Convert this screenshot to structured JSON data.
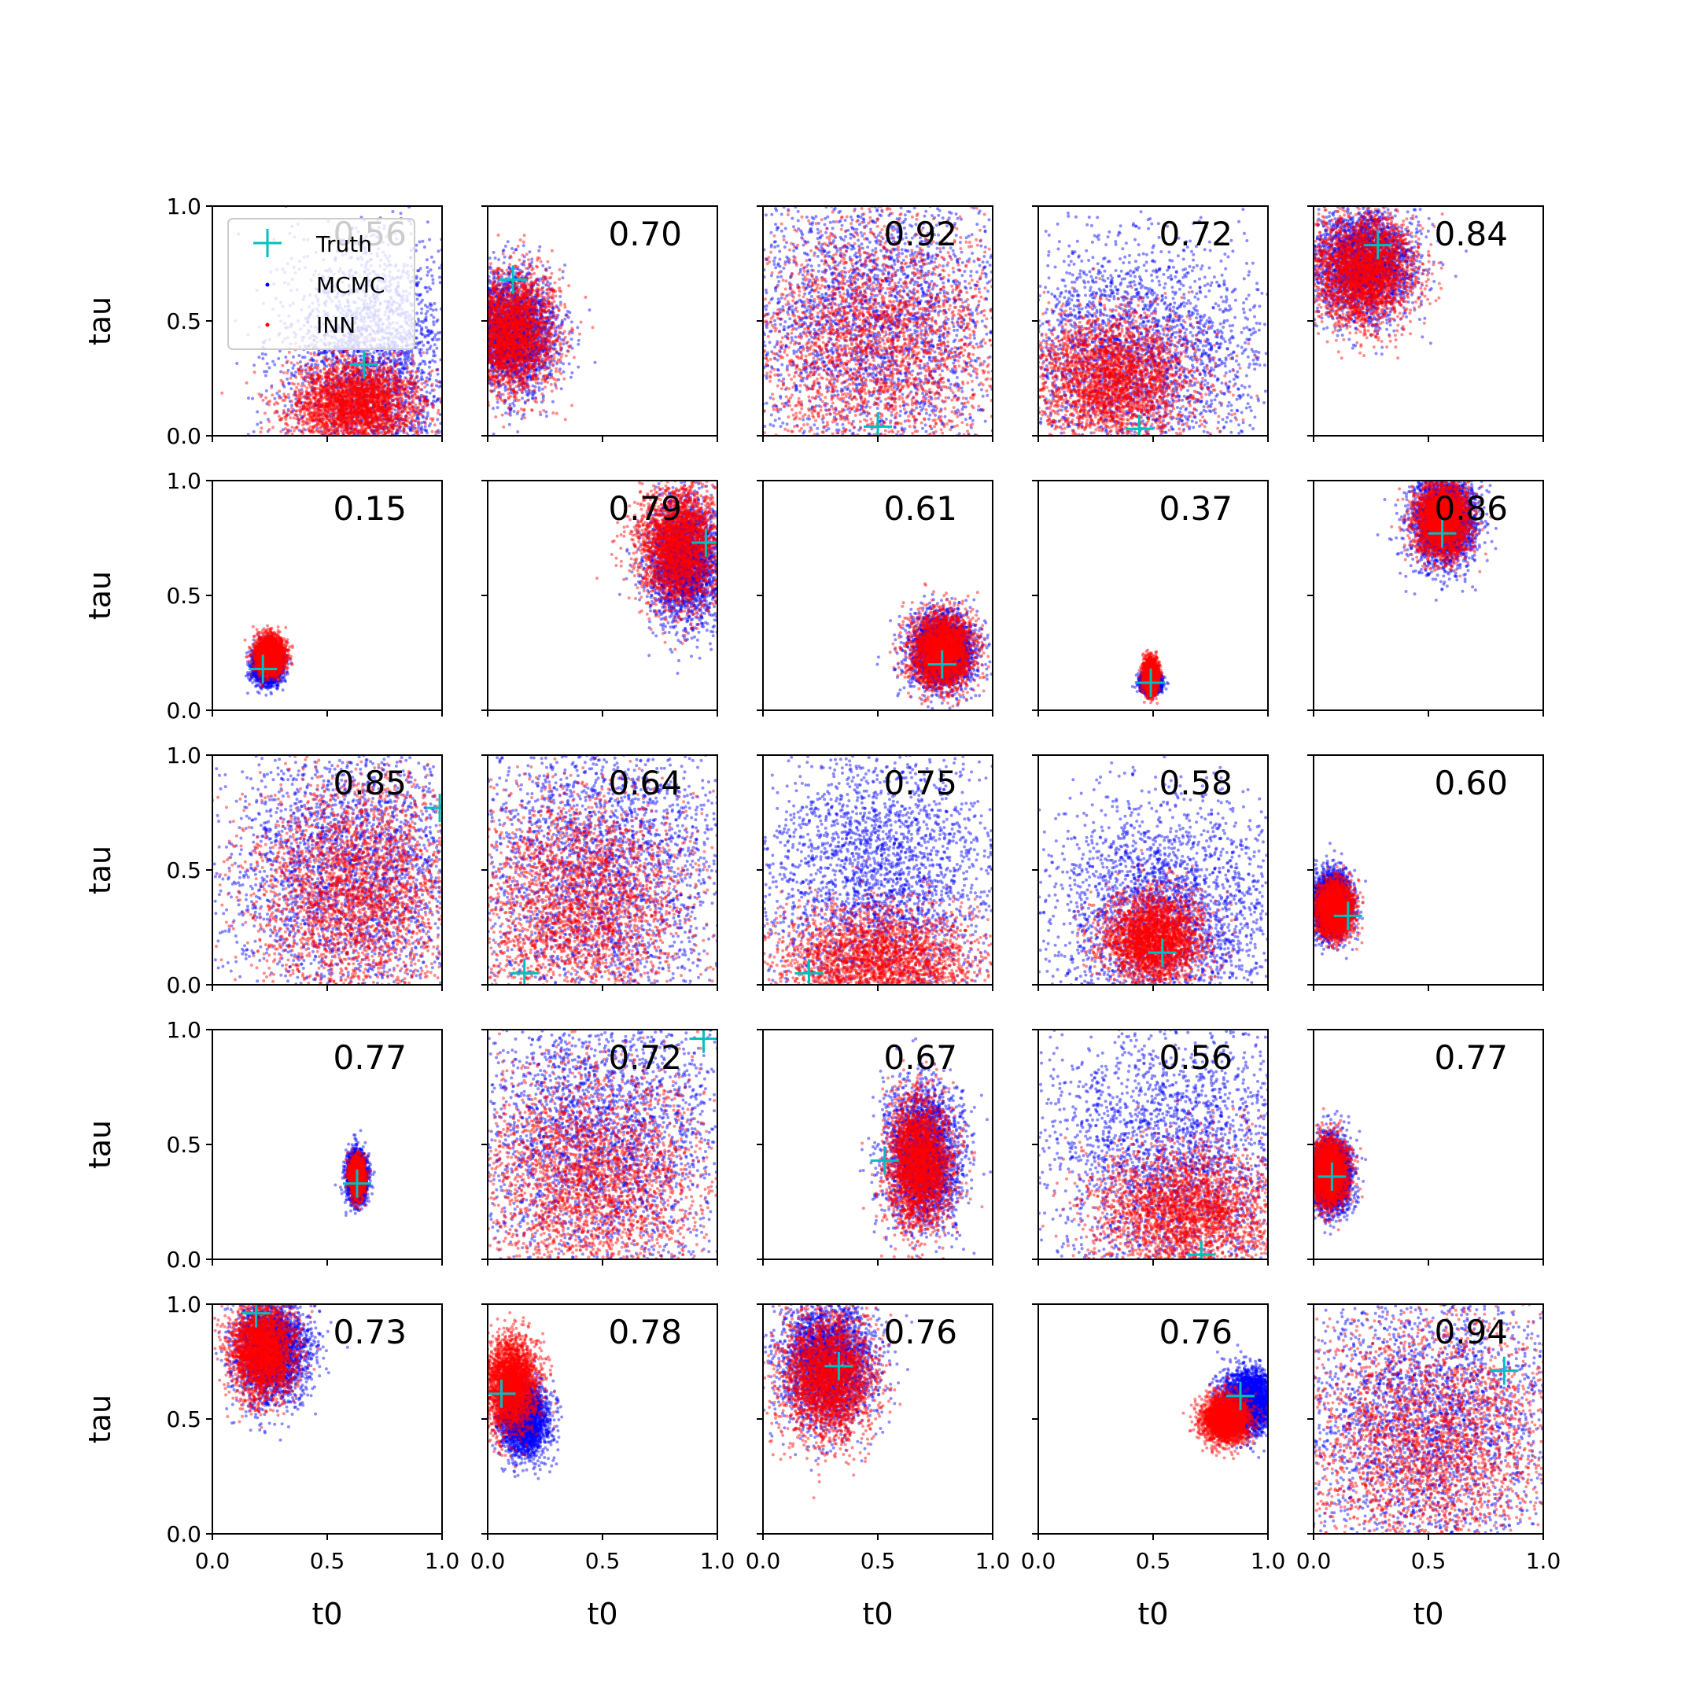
{
  "figure": {
    "xlabel": "t0",
    "ylabel": "tau",
    "legend": {
      "entries": [
        "Truth",
        "MCMC",
        "INN"
      ],
      "placement": "upper-left of first panel"
    }
  },
  "colors": {
    "truth": "#00bfbf",
    "mcmc": "#0000ff",
    "inn": "#ff0000",
    "axes": "#000000"
  },
  "chart_data": {
    "type": "scatter",
    "layout": "5x5 grid of posterior scatter panels",
    "xlabel": "t0",
    "ylabel": "tau",
    "xlim": [
      0,
      1
    ],
    "ylim": [
      0,
      1
    ],
    "x_tick_labels": [
      "0.0",
      "0.5",
      "1.0"
    ],
    "y_tick_labels": [
      "0.0",
      "0.5",
      "1.0"
    ],
    "series": [
      {
        "name": "Truth",
        "marker": "+"
      },
      {
        "name": "MCMC",
        "marker": "."
      },
      {
        "name": "INN",
        "marker": "."
      }
    ],
    "panels": [
      {
        "score": "0.56",
        "truth": [
          0.66,
          0.31
        ],
        "inn": {
          "mean": [
            0.62,
            0.14
          ],
          "sd": [
            0.14,
            0.09
          ]
        },
        "mcmc": {
          "mean": [
            0.7,
            0.3
          ],
          "sd": [
            0.2,
            0.28
          ]
        }
      },
      {
        "score": "0.70",
        "truth": [
          0.11,
          0.68
        ],
        "inn": {
          "mean": [
            0.1,
            0.45
          ],
          "sd": [
            0.1,
            0.13
          ]
        },
        "mcmc": {
          "mean": [
            0.1,
            0.45
          ],
          "sd": [
            0.1,
            0.13
          ]
        }
      },
      {
        "score": "0.92",
        "truth": [
          0.5,
          0.04
        ],
        "inn": {
          "mean": [
            0.5,
            0.4
          ],
          "sd": [
            0.28,
            0.28
          ]
        },
        "mcmc": {
          "mean": [
            0.5,
            0.5
          ],
          "sd": [
            0.3,
            0.32
          ]
        }
      },
      {
        "score": "0.72",
        "truth": [
          0.44,
          0.03
        ],
        "inn": {
          "mean": [
            0.33,
            0.25
          ],
          "sd": [
            0.18,
            0.14
          ]
        },
        "mcmc": {
          "mean": [
            0.4,
            0.35
          ],
          "sd": [
            0.3,
            0.25
          ]
        }
      },
      {
        "score": "0.84",
        "truth": [
          0.28,
          0.83
        ],
        "inn": {
          "mean": [
            0.22,
            0.72
          ],
          "sd": [
            0.11,
            0.12
          ]
        },
        "mcmc": {
          "mean": [
            0.22,
            0.75
          ],
          "sd": [
            0.11,
            0.12
          ]
        }
      },
      {
        "score": "0.15",
        "truth": [
          0.22,
          0.18
        ],
        "inn": {
          "mean": [
            0.25,
            0.24
          ],
          "sd": [
            0.03,
            0.04
          ]
        },
        "mcmc": {
          "mean": [
            0.24,
            0.2
          ],
          "sd": [
            0.03,
            0.04
          ]
        }
      },
      {
        "score": "0.79",
        "truth": [
          0.95,
          0.73
        ],
        "inn": {
          "mean": [
            0.84,
            0.72
          ],
          "sd": [
            0.09,
            0.13
          ]
        },
        "mcmc": {
          "mean": [
            0.86,
            0.65
          ],
          "sd": [
            0.08,
            0.13
          ]
        }
      },
      {
        "score": "0.61",
        "truth": [
          0.78,
          0.2
        ],
        "inn": {
          "mean": [
            0.78,
            0.26
          ],
          "sd": [
            0.07,
            0.08
          ]
        },
        "mcmc": {
          "mean": [
            0.78,
            0.26
          ],
          "sd": [
            0.07,
            0.08
          ]
        }
      },
      {
        "score": "0.37",
        "truth": [
          0.49,
          0.12
        ],
        "inn": {
          "mean": [
            0.49,
            0.15
          ],
          "sd": [
            0.015,
            0.035
          ]
        },
        "mcmc": {
          "mean": [
            0.49,
            0.12
          ],
          "sd": [
            0.02,
            0.02
          ]
        }
      },
      {
        "score": "0.86",
        "truth": [
          0.56,
          0.77
        ],
        "inn": {
          "mean": [
            0.56,
            0.83
          ],
          "sd": [
            0.06,
            0.08
          ]
        },
        "mcmc": {
          "mean": [
            0.57,
            0.83
          ],
          "sd": [
            0.07,
            0.1
          ]
        }
      },
      {
        "score": "0.85",
        "truth": [
          0.99,
          0.77
        ],
        "inn": {
          "mean": [
            0.62,
            0.4
          ],
          "sd": [
            0.22,
            0.25
          ]
        },
        "mcmc": {
          "mean": [
            0.6,
            0.5
          ],
          "sd": [
            0.28,
            0.3
          ]
        }
      },
      {
        "score": "0.64",
        "truth": [
          0.16,
          0.05
        ],
        "inn": {
          "mean": [
            0.4,
            0.35
          ],
          "sd": [
            0.25,
            0.25
          ]
        },
        "mcmc": {
          "mean": [
            0.5,
            0.5
          ],
          "sd": [
            0.3,
            0.32
          ]
        }
      },
      {
        "score": "0.75",
        "truth": [
          0.2,
          0.05
        ],
        "inn": {
          "mean": [
            0.5,
            0.1
          ],
          "sd": [
            0.22,
            0.12
          ]
        },
        "mcmc": {
          "mean": [
            0.5,
            0.45
          ],
          "sd": [
            0.28,
            0.3
          ]
        }
      },
      {
        "score": "0.58",
        "truth": [
          0.54,
          0.14
        ],
        "inn": {
          "mean": [
            0.5,
            0.2
          ],
          "sd": [
            0.11,
            0.1
          ]
        },
        "mcmc": {
          "mean": [
            0.55,
            0.3
          ],
          "sd": [
            0.25,
            0.25
          ]
        }
      },
      {
        "score": "0.60",
        "truth": [
          0.15,
          0.3
        ],
        "inn": {
          "mean": [
            0.09,
            0.33
          ],
          "sd": [
            0.04,
            0.06
          ]
        },
        "mcmc": {
          "mean": [
            0.08,
            0.35
          ],
          "sd": [
            0.04,
            0.07
          ]
        }
      },
      {
        "score": "0.77",
        "truth": [
          0.63,
          0.33
        ],
        "inn": {
          "mean": [
            0.63,
            0.36
          ],
          "sd": [
            0.015,
            0.04
          ]
        },
        "mcmc": {
          "mean": [
            0.63,
            0.36
          ],
          "sd": [
            0.02,
            0.05
          ]
        }
      },
      {
        "score": "0.72",
        "truth": [
          0.94,
          0.96
        ],
        "inn": {
          "mean": [
            0.45,
            0.35
          ],
          "sd": [
            0.25,
            0.25
          ]
        },
        "mcmc": {
          "mean": [
            0.5,
            0.55
          ],
          "sd": [
            0.3,
            0.3
          ]
        }
      },
      {
        "score": "0.67",
        "truth": [
          0.53,
          0.43
        ],
        "inn": {
          "mean": [
            0.68,
            0.42
          ],
          "sd": [
            0.07,
            0.14
          ]
        },
        "mcmc": {
          "mean": [
            0.7,
            0.45
          ],
          "sd": [
            0.08,
            0.15
          ]
        }
      },
      {
        "score": "0.56",
        "truth": [
          0.71,
          0.02
        ],
        "inn": {
          "mean": [
            0.65,
            0.2
          ],
          "sd": [
            0.2,
            0.15
          ]
        },
        "mcmc": {
          "mean": [
            0.6,
            0.45
          ],
          "sd": [
            0.3,
            0.3
          ]
        }
      },
      {
        "score": "0.77",
        "truth": [
          0.08,
          0.36
        ],
        "inn": {
          "mean": [
            0.07,
            0.38
          ],
          "sd": [
            0.04,
            0.07
          ]
        },
        "mcmc": {
          "mean": [
            0.08,
            0.37
          ],
          "sd": [
            0.04,
            0.08
          ]
        }
      },
      {
        "score": "0.73",
        "truth": [
          0.19,
          0.96
        ],
        "inn": {
          "mean": [
            0.22,
            0.8
          ],
          "sd": [
            0.07,
            0.1
          ]
        },
        "mcmc": {
          "mean": [
            0.26,
            0.8
          ],
          "sd": [
            0.08,
            0.11
          ]
        }
      },
      {
        "score": "0.78",
        "truth": [
          0.06,
          0.61
        ],
        "inn": {
          "mean": [
            0.1,
            0.65
          ],
          "sd": [
            0.06,
            0.1
          ]
        },
        "mcmc": {
          "mean": [
            0.16,
            0.5
          ],
          "sd": [
            0.05,
            0.08
          ]
        }
      },
      {
        "score": "0.76",
        "truth": [
          0.33,
          0.73
        ],
        "inn": {
          "mean": [
            0.28,
            0.68
          ],
          "sd": [
            0.1,
            0.14
          ]
        },
        "mcmc": {
          "mean": [
            0.28,
            0.75
          ],
          "sd": [
            0.1,
            0.14
          ]
        }
      },
      {
        "score": "0.76",
        "truth": [
          0.88,
          0.6
        ],
        "inn": {
          "mean": [
            0.82,
            0.5
          ],
          "sd": [
            0.05,
            0.05
          ]
        },
        "mcmc": {
          "mean": [
            0.92,
            0.58
          ],
          "sd": [
            0.06,
            0.07
          ]
        }
      },
      {
        "score": "0.94",
        "truth": [
          0.83,
          0.71
        ],
        "inn": {
          "mean": [
            0.5,
            0.4
          ],
          "sd": [
            0.28,
            0.28
          ]
        },
        "mcmc": {
          "mean": [
            0.5,
            0.5
          ],
          "sd": [
            0.3,
            0.32
          ]
        }
      }
    ]
  }
}
